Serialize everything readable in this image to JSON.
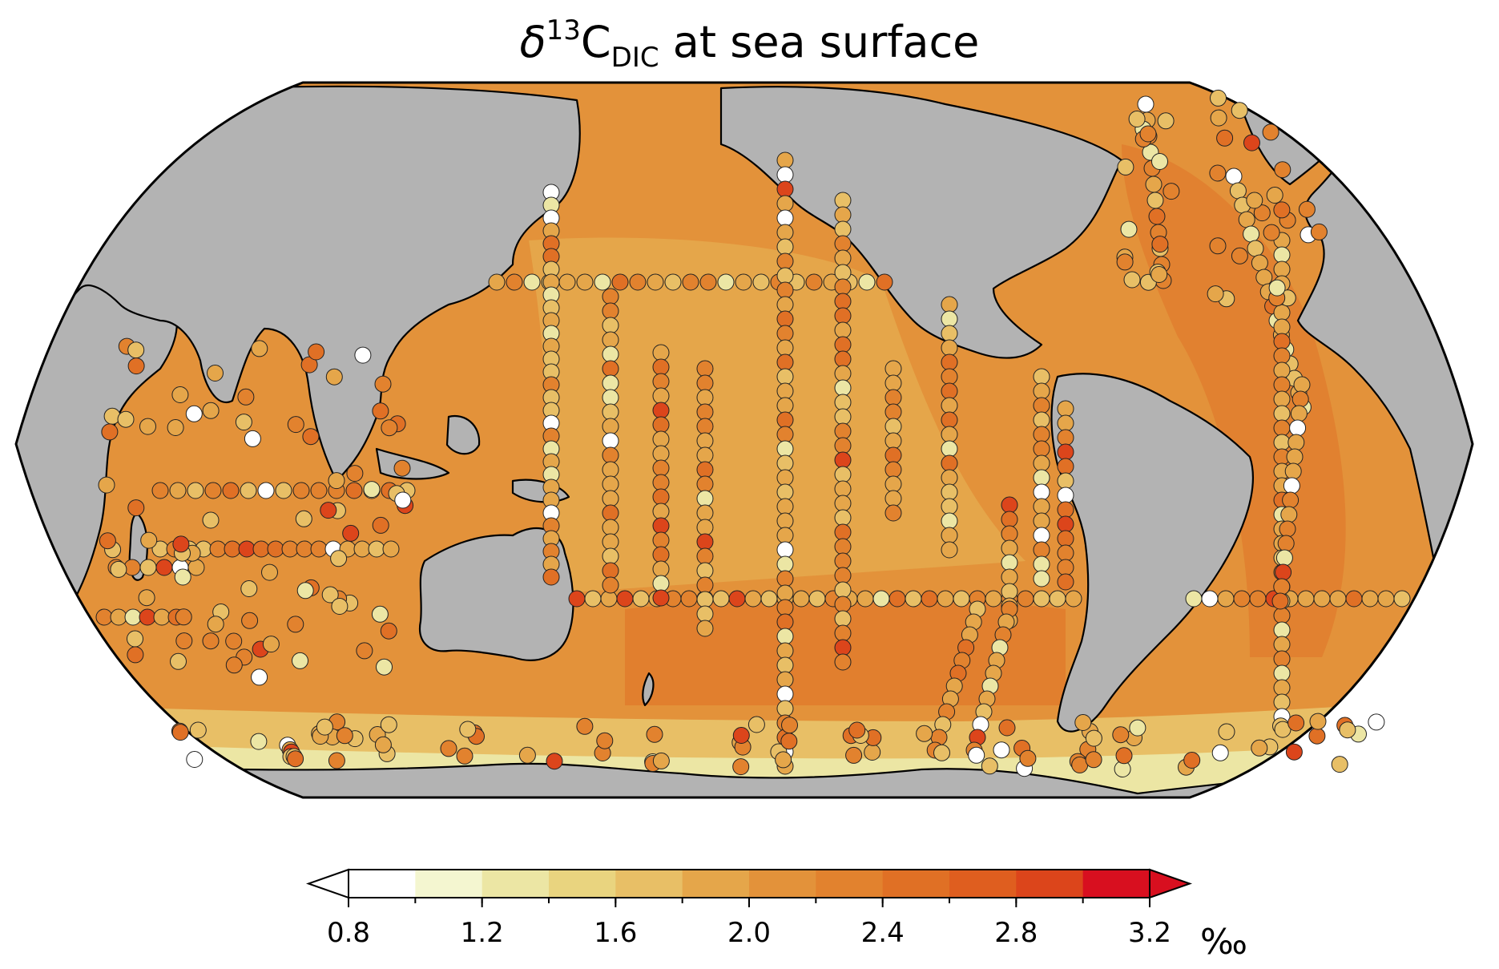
{
  "title": {
    "delta": "δ",
    "sup": "13",
    "main": "C",
    "sub": "DIC",
    "rest": " at sea surface"
  },
  "colorbar": {
    "levels": [
      0.8,
      1.0,
      1.2,
      1.4,
      1.6,
      1.8,
      2.0,
      2.2,
      2.4,
      2.6,
      2.8,
      3.0,
      3.2
    ],
    "colors": [
      "#ffffff",
      "#f4f6d0",
      "#ece6a4",
      "#e9d47f",
      "#e8bf66",
      "#e5a64a",
      "#e3923a",
      "#e2822e",
      "#e07025",
      "#df5e1f",
      "#dc451b",
      "#d80f1f"
    ],
    "ticks": [
      "0.8",
      "1.2",
      "1.6",
      "2.0",
      "2.4",
      "2.8",
      "3.2"
    ],
    "unit": "‰",
    "extend": "both"
  },
  "map": {
    "projection": "Robinson, centered on Pacific",
    "land_color": "#b3b3b3",
    "ocean_color": "#e3923a",
    "point_edge_color": "#222222"
  }
}
